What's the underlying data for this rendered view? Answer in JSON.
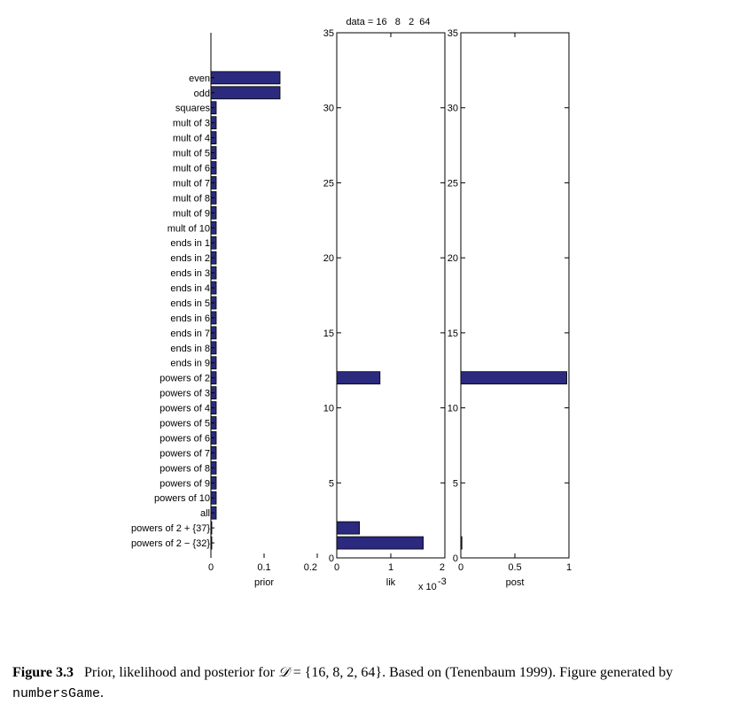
{
  "chart_data": [
    {
      "type": "bar",
      "orientation": "horizontal",
      "xlabel": "prior",
      "xlim": [
        0,
        0.2
      ],
      "xticks": [
        "0",
        "0.1",
        "0.2"
      ],
      "categories": [
        "even",
        "odd",
        "squares",
        "mult of 3",
        "mult of 4",
        "mult of 5",
        "mult of 6",
        "mult of 7",
        "mult of 8",
        "mult of 9",
        "mult of 10",
        "ends in 1",
        "ends in 2",
        "ends in 3",
        "ends in 4",
        "ends in 5",
        "ends in 6",
        "ends in 7",
        "ends in 8",
        "ends in 9",
        "powers of 2",
        "powers of 3",
        "powers of 4",
        "powers of 5",
        "powers of 6",
        "powers of 7",
        "powers of 8",
        "powers of 9",
        "powers of 10",
        "all",
        "powers of 2 + {37}",
        "powers of 2 − {32}"
      ],
      "values": [
        0.13,
        0.13,
        0.01,
        0.01,
        0.01,
        0.01,
        0.01,
        0.01,
        0.01,
        0.01,
        0.01,
        0.01,
        0.01,
        0.01,
        0.01,
        0.01,
        0.01,
        0.01,
        0.01,
        0.01,
        0.01,
        0.01,
        0.01,
        0.01,
        0.01,
        0.01,
        0.01,
        0.01,
        0.01,
        0.01,
        0.001,
        0.001
      ]
    },
    {
      "type": "bar",
      "orientation": "horizontal",
      "title": "data = 16   8   2  64",
      "xlabel": "lik",
      "x_multiplier": "x 10",
      "x_exponent": "-3",
      "xlim": [
        0,
        2
      ],
      "xticks": [
        "0",
        "1",
        "2"
      ],
      "ylim": [
        0,
        35
      ],
      "yticks": [
        "0",
        "5",
        "10",
        "15",
        "20",
        "25",
        "30",
        "35"
      ],
      "values": [
        0,
        0,
        0,
        0,
        0,
        0,
        0,
        0,
        0,
        0,
        0,
        0,
        0,
        0,
        0,
        0,
        0,
        0,
        0,
        0,
        0.8,
        0,
        0,
        0,
        0,
        0,
        0,
        0,
        0,
        0,
        0.42,
        1.6
      ]
    },
    {
      "type": "bar",
      "orientation": "horizontal",
      "xlabel": "post",
      "xlim": [
        0,
        1
      ],
      "xticks": [
        "0",
        "0.5",
        "1"
      ],
      "ylim": [
        0,
        35
      ],
      "yticks": [
        "0",
        "5",
        "10",
        "15",
        "20",
        "25",
        "30",
        "35"
      ],
      "values": [
        0,
        0,
        0,
        0,
        0,
        0,
        0,
        0,
        0,
        0,
        0,
        0,
        0,
        0,
        0,
        0,
        0,
        0,
        0,
        0,
        0.98,
        0,
        0,
        0,
        0,
        0,
        0,
        0,
        0,
        0,
        0,
        0.01
      ]
    }
  ],
  "colors": {
    "bar_fill": "#2b2a7f",
    "bar_edge": "#000000"
  },
  "caption": {
    "label": "Figure 3.3",
    "text_before": "Prior, likelihood and posterior for",
    "math_symbol": "𝒟",
    "math_rest": "= {16, 8, 2, 64}.",
    "text_after": "Based on (Tenenbaum 1999). Figure generated by",
    "code": "numbersGame",
    "end": "."
  }
}
